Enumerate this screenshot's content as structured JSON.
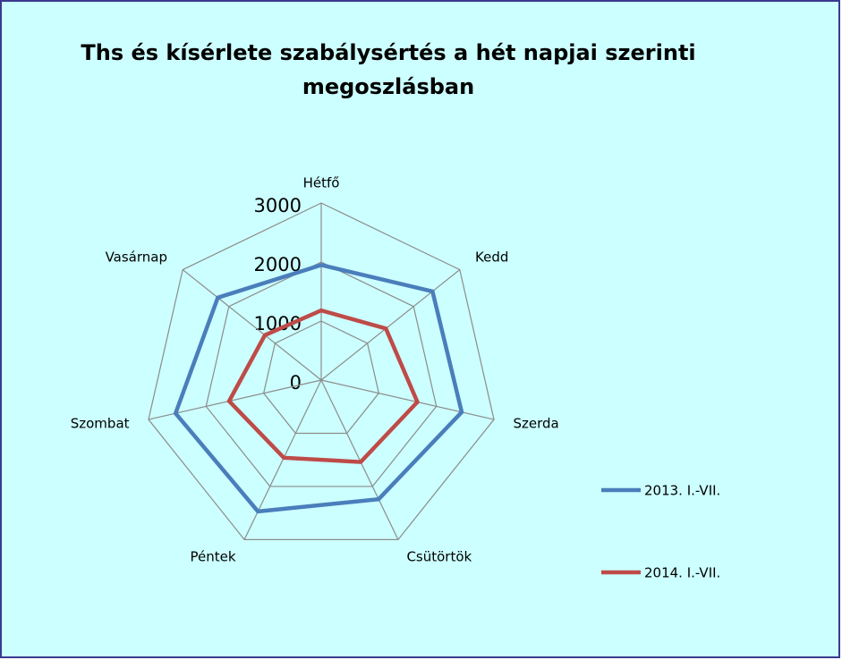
{
  "chart_data": {
    "type": "radar",
    "title": "Ths és kísérlete szabálysértés a hét napjai szerinti",
    "subtitle": "megoszlásban",
    "categories": [
      "Hétfő",
      "Kedd",
      "Szerda",
      "Csütörtök",
      "Péntek",
      "Szombat",
      "Vasárnap"
    ],
    "series": [
      {
        "name": "2013. I.-VII.",
        "color": "#4a7ebb",
        "values": [
          1950,
          2410,
          2440,
          2240,
          2470,
          2530,
          2240
        ]
      },
      {
        "name": "2014. I.-VII.",
        "color": "#be4b48",
        "values": [
          1180,
          1400,
          1670,
          1540,
          1460,
          1600,
          1220
        ]
      }
    ],
    "ylim": [
      0,
      3000
    ],
    "yticks": [
      0,
      1000,
      2000,
      3000
    ],
    "grid": true,
    "legend": "right"
  }
}
